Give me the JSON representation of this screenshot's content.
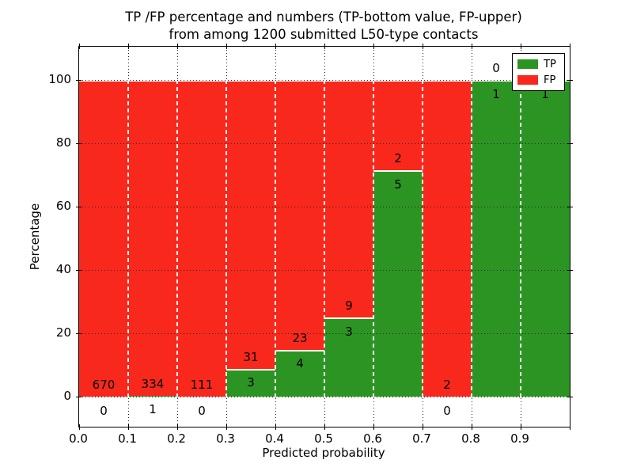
{
  "chart_data": {
    "type": "bar",
    "stacked": true,
    "title_line1": "TP /FP percentage and numbers (TP-bottom value, FP-upper)",
    "title_line2": "from among 1200 submitted L50-type contacts",
    "xlabel": "Predicted probability",
    "ylabel": "Percentage",
    "xlim": [
      0.0,
      1.0
    ],
    "ylim": [
      -9.5,
      110.5
    ],
    "grid": true,
    "x_tick_labels": [
      "0.0",
      "0.1",
      "0.2",
      "0.3",
      "0.4",
      "0.5",
      "0.6",
      "0.7",
      "0.8",
      "0.9"
    ],
    "y_tick_labels": [
      "0",
      "20",
      "40",
      "60",
      "80",
      "100"
    ],
    "y_tick_values": [
      0,
      20,
      40,
      60,
      80,
      100
    ],
    "legend": {
      "position": "upper right",
      "items": [
        {
          "name": "TP",
          "color": "#2c9423"
        },
        {
          "name": "FP",
          "color": "#f8281c"
        }
      ]
    },
    "series": [
      {
        "name": "TP",
        "color": "#2c9423"
      },
      {
        "name": "FP",
        "color": "#f8281c"
      }
    ],
    "bins": [
      {
        "x0": 0.0,
        "x1": 0.1,
        "tp": 0,
        "fp": 670,
        "tp_label": "0",
        "fp_label": "670"
      },
      {
        "x0": 0.1,
        "x1": 0.2,
        "tp": 1,
        "fp": 334,
        "tp_label": "1",
        "fp_label": "334"
      },
      {
        "x0": 0.2,
        "x1": 0.3,
        "tp": 0,
        "fp": 111,
        "tp_label": "0",
        "fp_label": "111"
      },
      {
        "x0": 0.3,
        "x1": 0.4,
        "tp": 3,
        "fp": 31,
        "tp_label": "3",
        "fp_label": "31"
      },
      {
        "x0": 0.4,
        "x1": 0.5,
        "tp": 4,
        "fp": 23,
        "tp_label": "4",
        "fp_label": "23"
      },
      {
        "x0": 0.5,
        "x1": 0.6,
        "tp": 3,
        "fp": 9,
        "tp_label": "3",
        "fp_label": "9"
      },
      {
        "x0": 0.6,
        "x1": 0.7,
        "tp": 5,
        "fp": 2,
        "tp_label": "5",
        "fp_label": "2"
      },
      {
        "x0": 0.7,
        "x1": 0.8,
        "tp": 0,
        "fp": 2,
        "tp_label": "0",
        "fp_label": "2"
      },
      {
        "x0": 0.8,
        "x1": 0.9,
        "tp": 1,
        "fp": 0,
        "tp_label": "1",
        "fp_label": "0"
      },
      {
        "x0": 0.9,
        "x1": 1.0,
        "tp": 1,
        "fp": 0,
        "tp_label": "1",
        "fp_label": null
      }
    ]
  }
}
